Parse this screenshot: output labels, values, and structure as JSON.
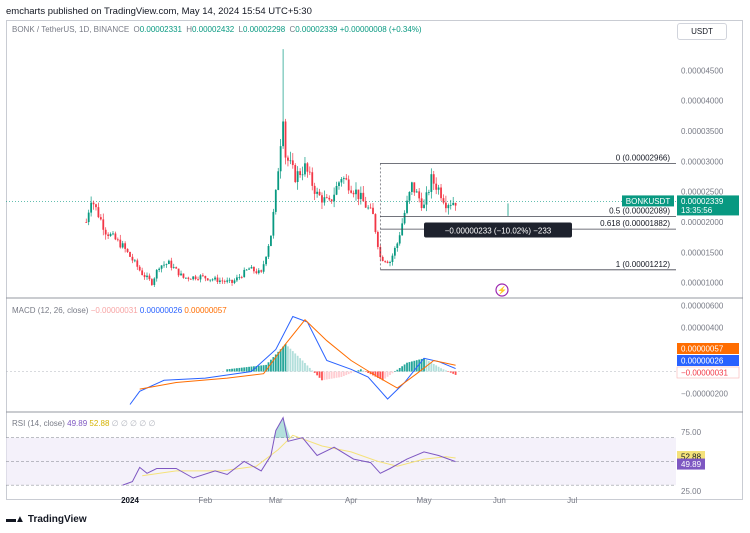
{
  "header": {
    "published": "emcharts published on TradingView.com, May 14, 2024 15:54 UTC+5:30"
  },
  "symbol": {
    "name": "BONK / TetherUS, 1D, BINANCE",
    "open_key": "O",
    "open": "0.00002331",
    "high_key": "H",
    "high": "0.00002432",
    "low_key": "L",
    "low": "0.00002298",
    "close_key": "C",
    "close": "0.00002339",
    "change": "+0.00000008 (+0.34%)",
    "currency": "USDT",
    "ticker_tag": "BONKUSDT",
    "last_price": "0.00002339",
    "countdown": "13:35:56"
  },
  "footer": {
    "brand": "TradingView",
    "logo": "tradingview-logo"
  },
  "colors": {
    "up": "#089981",
    "down": "#f23645",
    "macd": "#2962ff",
    "signal": "#ff6d00",
    "rsi": "#7e57c2",
    "rsi_ma": "#f5e27a",
    "rsi_band": "#ede7f6"
  },
  "chart_data": [
    {
      "type": "candlestick",
      "title": "BONK / TetherUS, 1D, BINANCE",
      "x_ticks": [
        "2024",
        "Feb",
        "Mar",
        "Apr",
        "May",
        "Jun",
        "Jul"
      ],
      "y_ticks": [
        "0.00004500",
        "0.00004000",
        "0.00003500",
        "0.00003000",
        "0.00002500",
        "0.00002000",
        "0.00001500",
        "0.00001000"
      ],
      "ylim": [
        7.8e-06,
        5e-05
      ],
      "close_series_key_points": [
        [
          "2023-12-14",
          2e-05
        ],
        [
          "2023-12-16",
          2.4e-05
        ],
        [
          "2023-12-22",
          1.85e-05
        ],
        [
          "2023-12-29",
          1.6e-05
        ],
        [
          "2024-01-06",
          1.15e-05
        ],
        [
          "2024-01-10",
          1e-05
        ],
        [
          "2024-01-13",
          1.28e-05
        ],
        [
          "2024-01-17",
          1.32e-05
        ],
        [
          "2024-01-23",
          1.08e-05
        ],
        [
          "2024-01-30",
          1.1e-05
        ],
        [
          "2024-02-05",
          1.05e-05
        ],
        [
          "2024-02-12",
          1e-05
        ],
        [
          "2024-02-19",
          1.23e-05
        ],
        [
          "2024-02-24",
          1.15e-05
        ],
        [
          "2024-02-28",
          1.8e-05
        ],
        [
          "2024-03-01",
          2.45e-05
        ],
        [
          "2024-03-04",
          3.8e-05
        ],
        [
          "2024-03-05",
          3.1e-05
        ],
        [
          "2024-03-09",
          2.75e-05
        ],
        [
          "2024-03-13",
          2.9e-05
        ],
        [
          "2024-03-18",
          2.45e-05
        ],
        [
          "2024-03-23",
          2.3e-05
        ],
        [
          "2024-03-28",
          2.75e-05
        ],
        [
          "2024-04-03",
          2.5e-05
        ],
        [
          "2024-04-10",
          2.1e-05
        ],
        [
          "2024-04-13",
          1.42e-05
        ],
        [
          "2024-04-17",
          1.35e-05
        ],
        [
          "2024-04-20",
          1.65e-05
        ],
        [
          "2024-04-23",
          2.15e-05
        ],
        [
          "2024-04-26",
          2.6e-05
        ],
        [
          "2024-05-01",
          2.25e-05
        ],
        [
          "2024-05-04",
          2.7e-05
        ],
        [
          "2024-05-07",
          2.55e-05
        ],
        [
          "2024-05-10",
          2.32e-05
        ],
        [
          "2024-05-14",
          2.339e-05
        ]
      ],
      "spike_high": [
        "2024-03-04",
        4.85e-05
      ],
      "fibonacci": [
        {
          "label": "0 (0.00002966)",
          "value": 2.966e-05
        },
        {
          "label": "0.5 (0.00002089)",
          "value": 2.089e-05
        },
        {
          "label": "0.618 (0.00001882)",
          "value": 1.882e-05
        },
        {
          "label": "1 (0.00001212)",
          "value": 1.212e-05
        }
      ],
      "measure_label": "−0.00000233 (−10.02%) −233"
    },
    {
      "type": "line",
      "title": "MACD (12, 26, close)",
      "values_shown": [
        "−0.00000031",
        "0.00000026",
        "0.00000057"
      ],
      "y_ticks": [
        "0.00000600",
        "0.00000400",
        "0.00000200",
        "−0.00000200"
      ],
      "ylim": [
        -3.5e-06,
        6.5e-06
      ],
      "series": [
        {
          "name": "MACD",
          "points": [
            [
              "2024-01-01",
              -3e-06
            ],
            [
              "2024-01-05",
              -1.8e-06
            ],
            [
              "2024-01-15",
              -8e-07
            ],
            [
              "2024-02-01",
              -6e-07
            ],
            [
              "2024-02-20",
              0.0
            ],
            [
              "2024-03-01",
              2e-06
            ],
            [
              "2024-03-08",
              5e-06
            ],
            [
              "2024-03-14",
              4.5e-06
            ],
            [
              "2024-03-22",
              1e-06
            ],
            [
              "2024-04-01",
              2e-07
            ],
            [
              "2024-04-08",
              -5e-07
            ],
            [
              "2024-04-16",
              -2.5e-06
            ],
            [
              "2024-04-23",
              -1e-06
            ],
            [
              "2024-05-01",
              1.2e-06
            ],
            [
              "2024-05-07",
              9e-07
            ],
            [
              "2024-05-14",
              2.6e-07
            ]
          ]
        },
        {
          "name": "Signal",
          "points": [
            [
              "2024-01-05",
              -1.6e-06
            ],
            [
              "2024-01-20",
              -1e-06
            ],
            [
              "2024-02-10",
              -6e-07
            ],
            [
              "2024-02-25",
              -2e-07
            ],
            [
              "2024-03-05",
              2.5e-06
            ],
            [
              "2024-03-13",
              4.7e-06
            ],
            [
              "2024-03-22",
              2.8e-06
            ],
            [
              "2024-04-01",
              1e-06
            ],
            [
              "2024-04-12",
              -5e-07
            ],
            [
              "2024-04-20",
              -1.5e-06
            ],
            [
              "2024-04-28",
              -2e-07
            ],
            [
              "2024-05-05",
              1e-06
            ],
            [
              "2024-05-14",
              5.7e-07
            ]
          ]
        },
        {
          "name": "Histogram",
          "points": [
            [
              "2024-02-10",
              2e-07
            ],
            [
              "2024-02-26",
              6e-07
            ],
            [
              "2024-03-05",
              2.5e-06
            ],
            [
              "2024-03-12",
              1e-06
            ],
            [
              "2024-03-20",
              -8e-07
            ],
            [
              "2024-03-28",
              -5e-07
            ],
            [
              "2024-04-05",
              2e-07
            ],
            [
              "2024-04-14",
              -8e-07
            ],
            [
              "2024-04-24",
              8e-07
            ],
            [
              "2024-05-01",
              1.2e-06
            ],
            [
              "2024-05-08",
              3e-07
            ],
            [
              "2024-05-14",
              -3.1e-07
            ]
          ]
        }
      ]
    },
    {
      "type": "line",
      "title": "RSI (14, close)",
      "values_shown": [
        "49.89",
        "52.88"
      ],
      "y_ticks": [
        "75.00",
        "25.00"
      ],
      "band": [
        30,
        70
      ],
      "ylim": [
        20,
        90
      ],
      "series": [
        {
          "name": "RSI",
          "points": [
            [
              "2023-12-29",
              30
            ],
            [
              "2024-01-02",
              33
            ],
            [
              "2024-01-05",
              45
            ],
            [
              "2024-01-08",
              40
            ],
            [
              "2024-01-12",
              44
            ],
            [
              "2024-01-20",
              44
            ],
            [
              "2024-01-27",
              36
            ],
            [
              "2024-02-05",
              42
            ],
            [
              "2024-02-10",
              39
            ],
            [
              "2024-02-17",
              50
            ],
            [
              "2024-02-24",
              42
            ],
            [
              "2024-02-28",
              55
            ],
            [
              "2024-03-01",
              76
            ],
            [
              "2024-03-04",
              87
            ],
            [
              "2024-03-06",
              67
            ],
            [
              "2024-03-12",
              70
            ],
            [
              "2024-03-18",
              55
            ],
            [
              "2024-03-25",
              62
            ],
            [
              "2024-04-02",
              52
            ],
            [
              "2024-04-09",
              49
            ],
            [
              "2024-04-13",
              40
            ],
            [
              "2024-04-17",
              44
            ],
            [
              "2024-04-24",
              52
            ],
            [
              "2024-05-01",
              58
            ],
            [
              "2024-05-07",
              55
            ],
            [
              "2024-05-14",
              49.89
            ]
          ]
        },
        {
          "name": "RSI-based MA",
          "points": [
            [
              "2024-01-06",
              38
            ],
            [
              "2024-01-20",
              42
            ],
            [
              "2024-02-08",
              42
            ],
            [
              "2024-02-22",
              46
            ],
            [
              "2024-03-02",
              60
            ],
            [
              "2024-03-08",
              72
            ],
            [
              "2024-03-20",
              63
            ],
            [
              "2024-04-01",
              58
            ],
            [
              "2024-04-12",
              50
            ],
            [
              "2024-04-20",
              46
            ],
            [
              "2024-05-01",
              52
            ],
            [
              "2024-05-10",
              54
            ],
            [
              "2024-05-14",
              52.88
            ]
          ]
        }
      ]
    }
  ]
}
